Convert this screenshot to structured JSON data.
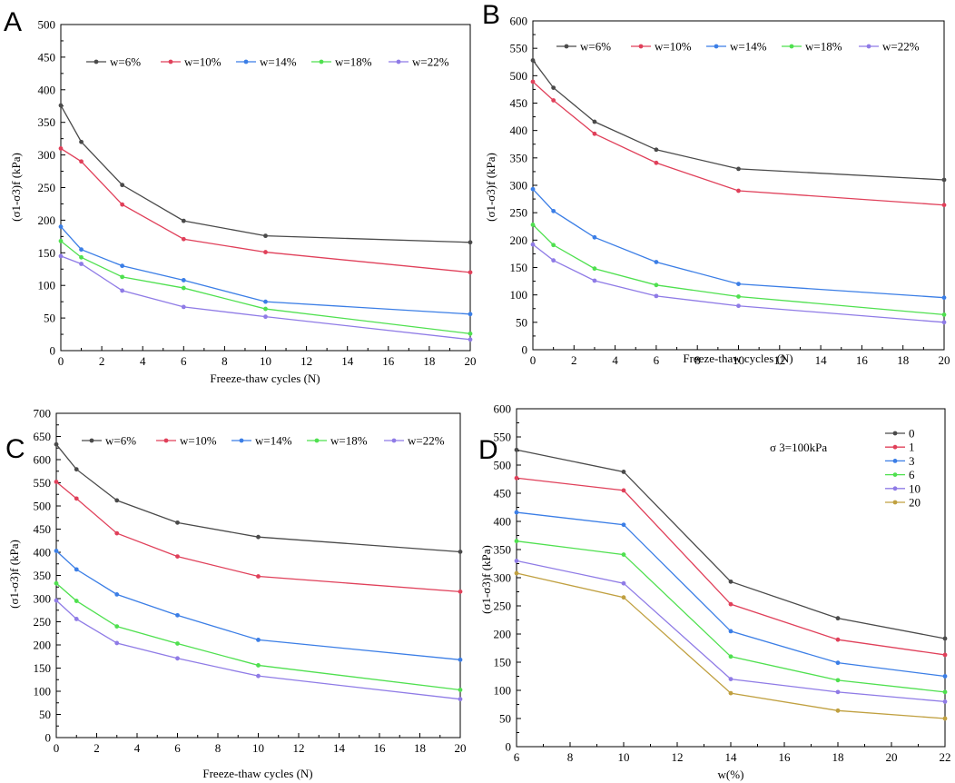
{
  "chart_data": [
    {
      "panel": "A",
      "type": "line",
      "xlabel": "Freeze-thaw cycles (N)",
      "ylabel": "(σ1-σ3)f (kPa)",
      "x": [
        0,
        1,
        3,
        6,
        10,
        20
      ],
      "xlim": [
        0,
        20
      ],
      "ylim": [
        0,
        500
      ],
      "xticks": [
        0,
        2,
        4,
        6,
        8,
        10,
        12,
        14,
        16,
        18,
        20
      ],
      "yticks": [
        0,
        50,
        100,
        150,
        200,
        250,
        300,
        350,
        400,
        450,
        500
      ],
      "series": [
        {
          "name": "w=6%",
          "color": "#4a4a4a",
          "values": [
            376,
            320,
            254,
            199,
            176,
            166
          ]
        },
        {
          "name": "w=10%",
          "color": "#e0405a",
          "values": [
            310,
            290,
            224,
            171,
            151,
            120
          ]
        },
        {
          "name": "w=14%",
          "color": "#3b7ee6",
          "values": [
            190,
            155,
            130,
            108,
            75,
            56
          ]
        },
        {
          "name": "w=18%",
          "color": "#4fe04f",
          "values": [
            168,
            143,
            113,
            96,
            64,
            26
          ]
        },
        {
          "name": "w=22%",
          "color": "#8f7be6",
          "values": [
            145,
            133,
            92,
            67,
            52,
            17
          ]
        }
      ]
    },
    {
      "panel": "B",
      "type": "line",
      "xlabel": "Freeze-thaw cycles (N)",
      "ylabel": "(σ1-σ3)f (kPa)",
      "x": [
        0,
        1,
        3,
        6,
        10,
        20
      ],
      "xlim": [
        0,
        20
      ],
      "ylim": [
        0,
        600
      ],
      "xticks": [
        0,
        2,
        4,
        6,
        8,
        10,
        12,
        14,
        16,
        18,
        20
      ],
      "yticks": [
        0,
        50,
        100,
        150,
        200,
        250,
        300,
        350,
        400,
        450,
        500,
        550,
        600
      ],
      "series": [
        {
          "name": "w=6%",
          "color": "#4a4a4a",
          "values": [
            528,
            478,
            416,
            365,
            330,
            310
          ]
        },
        {
          "name": "w=10%",
          "color": "#e0405a",
          "values": [
            489,
            455,
            394,
            341,
            290,
            264
          ]
        },
        {
          "name": "w=14%",
          "color": "#3b7ee6",
          "values": [
            293,
            253,
            205,
            160,
            120,
            95
          ]
        },
        {
          "name": "w=18%",
          "color": "#4fe04f",
          "values": [
            228,
            191,
            148,
            118,
            97,
            64
          ]
        },
        {
          "name": "w=22%",
          "color": "#8f7be6",
          "values": [
            192,
            163,
            126,
            98,
            80,
            50
          ]
        }
      ]
    },
    {
      "panel": "C",
      "type": "line",
      "xlabel": "Freeze-thaw cycles (N)",
      "ylabel": "(σ1-σ3)f (kPa)",
      "x": [
        0,
        1,
        3,
        6,
        10,
        20
      ],
      "xlim": [
        0,
        20
      ],
      "ylim": [
        0,
        700
      ],
      "xticks": [
        0,
        2,
        4,
        6,
        8,
        10,
        12,
        14,
        16,
        18,
        20
      ],
      "yticks": [
        0,
        50,
        100,
        150,
        200,
        250,
        300,
        350,
        400,
        450,
        500,
        550,
        600,
        650,
        700
      ],
      "series": [
        {
          "name": "w=6%",
          "color": "#4a4a4a",
          "values": [
            633,
            579,
            512,
            464,
            433,
            401
          ]
        },
        {
          "name": "w=10%",
          "color": "#e0405a",
          "values": [
            552,
            516,
            441,
            391,
            348,
            315
          ]
        },
        {
          "name": "w=14%",
          "color": "#3b7ee6",
          "values": [
            403,
            363,
            309,
            264,
            211,
            168
          ]
        },
        {
          "name": "w=18%",
          "color": "#4fe04f",
          "values": [
            333,
            295,
            240,
            203,
            156,
            103
          ]
        },
        {
          "name": "w=22%",
          "color": "#8f7be6",
          "values": [
            296,
            256,
            204,
            171,
            133,
            83
          ]
        }
      ]
    },
    {
      "panel": "D",
      "type": "line",
      "xlabel": "w(%)",
      "ylabel": "(σ1-σ3)f (kPa)",
      "annotation": "σ 3=100kPa",
      "x": [
        6,
        10,
        14,
        18,
        22
      ],
      "xlim": [
        6,
        22
      ],
      "ylim": [
        0,
        600
      ],
      "xticks": [
        6,
        8,
        10,
        12,
        14,
        16,
        18,
        20,
        22
      ],
      "yticks": [
        0,
        50,
        100,
        150,
        200,
        250,
        300,
        350,
        400,
        450,
        500,
        550,
        600
      ],
      "series": [
        {
          "name": "0",
          "color": "#4a4a4a",
          "values": [
            527,
            488,
            293,
            228,
            192
          ]
        },
        {
          "name": "1",
          "color": "#e0405a",
          "values": [
            477,
            455,
            253,
            190,
            163
          ]
        },
        {
          "name": "3",
          "color": "#3b7ee6",
          "values": [
            416,
            394,
            205,
            149,
            125
          ]
        },
        {
          "name": "6",
          "color": "#4fe04f",
          "values": [
            365,
            341,
            160,
            118,
            97
          ]
        },
        {
          "name": "10",
          "color": "#8f7be6",
          "values": [
            330,
            290,
            120,
            97,
            80
          ]
        },
        {
          "name": "20",
          "color": "#c0a040",
          "values": [
            308,
            265,
            95,
            64,
            50
          ]
        }
      ]
    }
  ]
}
